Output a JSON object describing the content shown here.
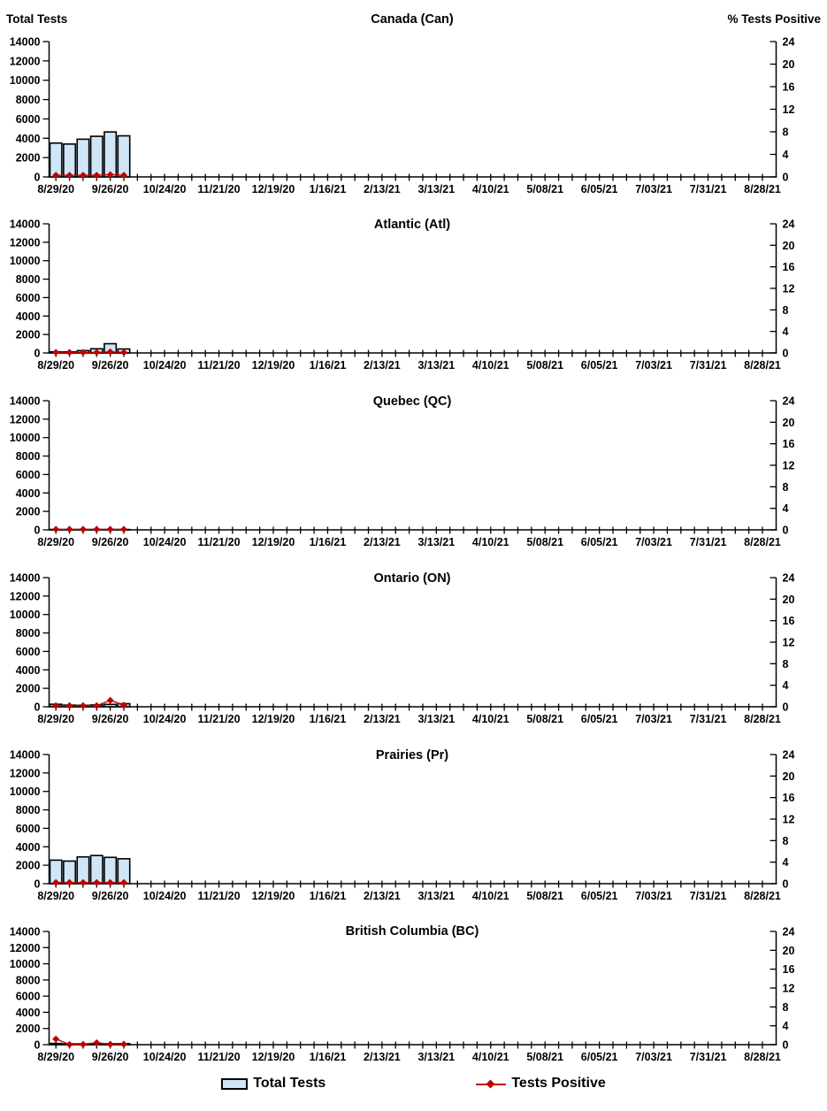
{
  "page": {
    "background": "#ffffff"
  },
  "colors": {
    "bar_fill": "#CEE6F8",
    "bar_stroke": "#000000",
    "positive_line": "#C00000",
    "positive_marker": "#C00000",
    "axis": "#000000",
    "text": "#000000"
  },
  "legend": {
    "total_tests_label": "Total Tests",
    "tests_positive_label": "Tests Positive"
  },
  "chart_data": {
    "type": "bar+line",
    "left_axis": {
      "title": "Total Tests",
      "min": 0,
      "max": 14000,
      "ticks": [
        0,
        2000,
        4000,
        6000,
        8000,
        10000,
        12000,
        14000
      ]
    },
    "right_axis": {
      "title": "% Tests Positive",
      "min": 0,
      "max": 24,
      "ticks": [
        0,
        4,
        8,
        12,
        16,
        20,
        24
      ]
    },
    "x_axis": {
      "weeks_total": 53,
      "label_every": 4,
      "tick_labels": [
        "8/29/20",
        "9/26/20",
        "10/24/20",
        "11/21/20",
        "12/19/20",
        "1/16/21",
        "2/13/21",
        "3/13/21",
        "4/10/21",
        "5/08/21",
        "6/05/21",
        "7/03/21",
        "7/31/21",
        "8/28/21"
      ]
    },
    "series_names": {
      "bars": "Total Tests",
      "line": "Tests Positive"
    },
    "bar_week_indices": [
      0,
      1,
      2,
      3,
      4,
      5
    ],
    "charts": [
      {
        "title": "Canada (Can)",
        "total_tests": [
          3500,
          3400,
          3900,
          4200,
          4650,
          4250
        ],
        "pct_positive": [
          0.3,
          0.3,
          0.3,
          0.3,
          0.4,
          0.3
        ]
      },
      {
        "title": "Atlantic (Atl)",
        "total_tests": [
          120,
          120,
          250,
          450,
          1000,
          430
        ],
        "pct_positive": [
          0.1,
          0.1,
          0.1,
          0.1,
          0.2,
          0.1
        ]
      },
      {
        "title": "Quebec (QC)",
        "total_tests": [
          40,
          40,
          40,
          40,
          40,
          40
        ],
        "pct_positive": [
          0.1,
          0.1,
          0.1,
          0.1,
          0.1,
          0.1
        ]
      },
      {
        "title": "Ontario (ON)",
        "total_tests": [
          270,
          180,
          160,
          200,
          260,
          330
        ],
        "pct_positive": [
          0.2,
          0.2,
          0.2,
          0.2,
          1.2,
          0.3
        ]
      },
      {
        "title": "Prairies (Pr)",
        "total_tests": [
          2550,
          2450,
          2900,
          3050,
          2850,
          2700
        ],
        "pct_positive": [
          0.2,
          0.2,
          0.2,
          0.2,
          0.2,
          0.2
        ]
      },
      {
        "title": "British Columbia (BC)",
        "total_tests": [
          150,
          100,
          100,
          150,
          120,
          120
        ],
        "pct_positive": [
          1.2,
          0.05,
          0.05,
          0.4,
          0.1,
          0.1
        ]
      }
    ]
  }
}
